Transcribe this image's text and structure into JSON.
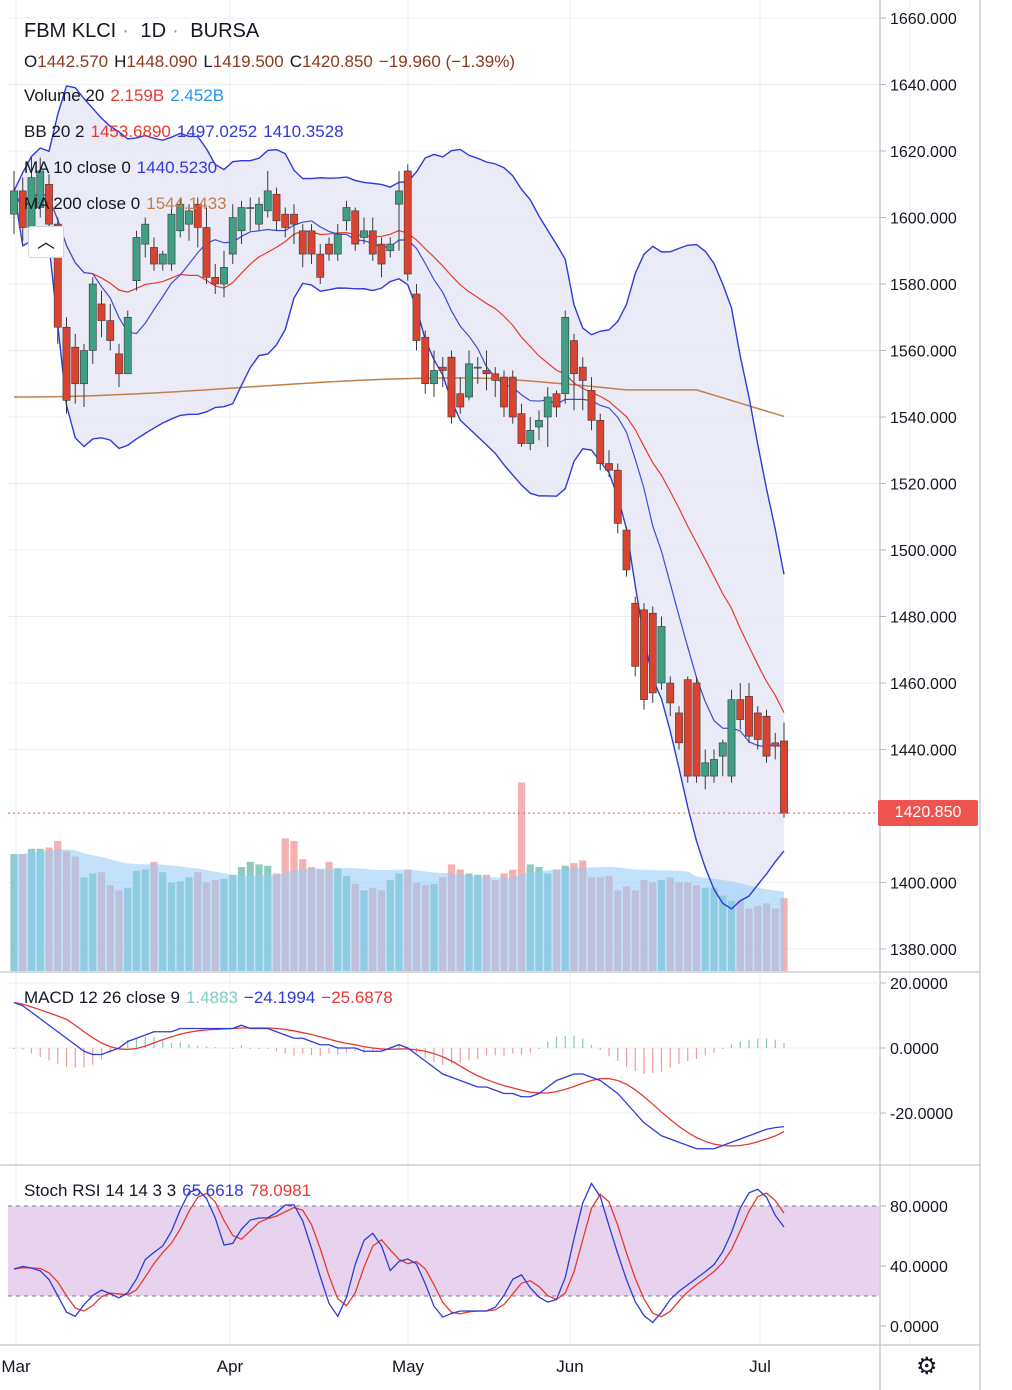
{
  "header": {
    "symbol": "FBM KLCI",
    "interval": "1D",
    "exchange": "BURSA",
    "ohlc": {
      "open_label": "O",
      "open": "1442.570",
      "high_label": "H",
      "high": "1448.090",
      "low_label": "L",
      "low": "1419.500",
      "close_label": "C",
      "close": "1420.850",
      "change": "−19.960 (−1.39%)"
    }
  },
  "legends": {
    "volume": {
      "label": "Volume 20",
      "v1": "2.159B",
      "v2": "2.452B"
    },
    "bb": {
      "label": "BB 20 2",
      "v1": "1453.6890",
      "v2": "1497.0252",
      "v3": "1410.3528"
    },
    "ma10": {
      "label": "MA 10 close 0",
      "value": "1440.5230"
    },
    "ma200": {
      "label": "MA 200 close 0",
      "value": "1544.1433"
    },
    "macd": {
      "label": "MACD 12 26 close 9",
      "hist": "1.4883",
      "macd": "−24.1994",
      "signal": "−25.6878"
    },
    "stoch": {
      "label": "Stoch RSI 14 14 3 3",
      "k": "65.6618",
      "d": "78.0981"
    }
  },
  "colors": {
    "up": "#26a69a",
    "down": "#ef5350",
    "bb_line": "#2f3ad9",
    "bb_fill": "#e6e7f5",
    "ma10": "#e53935",
    "ma200": "#c27f4a",
    "vol_ma": "#90caf9",
    "stoch_band": "#e1c8e8",
    "k": "#2f3ad9",
    "d": "#e53935",
    "grid": "#eceff2"
  },
  "last_price_badge": "1420.850",
  "settings_icon": "gear-icon",
  "chart_data": {
    "type": "candlestick",
    "x_ticks": [
      "Mar",
      "Apr",
      "May",
      "Jun",
      "Jul"
    ],
    "price_axis": {
      "ticks": [
        "1660.000",
        "1640.000",
        "1620.000",
        "1600.000",
        "1580.000",
        "1560.000",
        "1540.000",
        "1520.000",
        "1500.000",
        "1480.000",
        "1460.000",
        "1440.000",
        "1420.850",
        "1400.000",
        "1380.000"
      ],
      "range": [
        1372,
        1662
      ]
    },
    "candles": [
      {
        "o": 1601,
        "c": 1608,
        "h": 1614,
        "l": 1595
      },
      {
        "o": 1608,
        "c": 1597,
        "h": 1612,
        "l": 1593
      },
      {
        "o": 1597,
        "c": 1612,
        "h": 1618,
        "l": 1594
      },
      {
        "o": 1603,
        "c": 1614,
        "h": 1618,
        "l": 1600
      },
      {
        "o": 1610,
        "c": 1598,
        "h": 1613,
        "l": 1594
      },
      {
        "o": 1598,
        "c": 1567,
        "h": 1600,
        "l": 1562
      },
      {
        "o": 1567,
        "c": 1545,
        "h": 1570,
        "l": 1541
      },
      {
        "o": 1561,
        "c": 1550,
        "h": 1565,
        "l": 1544
      },
      {
        "o": 1550,
        "c": 1560,
        "h": 1562,
        "l": 1543
      },
      {
        "o": 1560,
        "c": 1580,
        "h": 1582,
        "l": 1556
      },
      {
        "o": 1574,
        "c": 1569,
        "h": 1578,
        "l": 1564
      },
      {
        "o": 1569,
        "c": 1563,
        "h": 1574,
        "l": 1560
      },
      {
        "o": 1559,
        "c": 1553,
        "h": 1562,
        "l": 1549
      },
      {
        "o": 1553,
        "c": 1570,
        "h": 1572,
        "l": 1554
      },
      {
        "o": 1581,
        "c": 1594,
        "h": 1596,
        "l": 1578
      },
      {
        "o": 1592,
        "c": 1598,
        "h": 1600,
        "l": 1588
      },
      {
        "o": 1591,
        "c": 1586,
        "h": 1594,
        "l": 1584
      },
      {
        "o": 1586,
        "c": 1589,
        "h": 1590,
        "l": 1584
      },
      {
        "o": 1586,
        "c": 1601,
        "h": 1603,
        "l": 1584
      },
      {
        "o": 1596,
        "c": 1604,
        "h": 1606,
        "l": 1594
      },
      {
        "o": 1598,
        "c": 1602,
        "h": 1604,
        "l": 1593
      },
      {
        "o": 1604,
        "c": 1597,
        "h": 1606,
        "l": 1591
      },
      {
        "o": 1597,
        "c": 1582,
        "h": 1603,
        "l": 1580
      },
      {
        "o": 1582,
        "c": 1580,
        "h": 1586,
        "l": 1577
      },
      {
        "o": 1580,
        "c": 1585,
        "h": 1590,
        "l": 1576
      },
      {
        "o": 1589,
        "c": 1600,
        "h": 1604,
        "l": 1586
      },
      {
        "o": 1596,
        "c": 1603,
        "h": 1605,
        "l": 1592
      },
      {
        "o": 1603,
        "c": 1603,
        "h": 1606,
        "l": 1596
      },
      {
        "o": 1598,
        "c": 1604,
        "h": 1606,
        "l": 1596
      },
      {
        "o": 1602,
        "c": 1608,
        "h": 1614,
        "l": 1600
      },
      {
        "o": 1607,
        "c": 1599,
        "h": 1609,
        "l": 1596
      },
      {
        "o": 1601,
        "c": 1597,
        "h": 1603,
        "l": 1594
      },
      {
        "o": 1601,
        "c": 1598,
        "h": 1604,
        "l": 1592
      },
      {
        "o": 1596,
        "c": 1589,
        "h": 1598,
        "l": 1585
      },
      {
        "o": 1596,
        "c": 1589,
        "h": 1598,
        "l": 1586
      },
      {
        "o": 1589,
        "c": 1582,
        "h": 1592,
        "l": 1580
      },
      {
        "o": 1592,
        "c": 1589,
        "h": 1594,
        "l": 1587
      },
      {
        "o": 1589,
        "c": 1595,
        "h": 1598,
        "l": 1587
      },
      {
        "o": 1599,
        "c": 1603,
        "h": 1605,
        "l": 1596
      },
      {
        "o": 1602,
        "c": 1592,
        "h": 1603,
        "l": 1590
      },
      {
        "o": 1594,
        "c": 1596,
        "h": 1600,
        "l": 1592
      },
      {
        "o": 1596,
        "c": 1589,
        "h": 1600,
        "l": 1587
      },
      {
        "o": 1592,
        "c": 1586,
        "h": 1594,
        "l": 1582
      },
      {
        "o": 1590,
        "c": 1592,
        "h": 1594,
        "l": 1588
      },
      {
        "o": 1604,
        "c": 1608,
        "h": 1614,
        "l": 1590
      },
      {
        "o": 1614,
        "c": 1583,
        "h": 1616,
        "l": 1581
      },
      {
        "o": 1577,
        "c": 1563,
        "h": 1580,
        "l": 1560
      },
      {
        "o": 1564,
        "c": 1550,
        "h": 1566,
        "l": 1547
      },
      {
        "o": 1550,
        "c": 1554,
        "h": 1560,
        "l": 1546
      },
      {
        "o": 1555,
        "c": 1554,
        "h": 1558,
        "l": 1549
      },
      {
        "o": 1558,
        "c": 1540,
        "h": 1560,
        "l": 1538
      },
      {
        "o": 1547,
        "c": 1543,
        "h": 1552,
        "l": 1541
      },
      {
        "o": 1546,
        "c": 1556,
        "h": 1560,
        "l": 1545
      },
      {
        "o": 1555,
        "c": 1555,
        "h": 1558,
        "l": 1550
      },
      {
        "o": 1554,
        "c": 1553,
        "h": 1560,
        "l": 1548
      },
      {
        "o": 1553,
        "c": 1551,
        "h": 1555,
        "l": 1546
      },
      {
        "o": 1552,
        "c": 1543,
        "h": 1554,
        "l": 1540
      },
      {
        "o": 1552,
        "c": 1540,
        "h": 1554,
        "l": 1538
      },
      {
        "o": 1541,
        "c": 1532,
        "h": 1544,
        "l": 1531
      },
      {
        "o": 1532,
        "c": 1536,
        "h": 1540,
        "l": 1530
      },
      {
        "o": 1537,
        "c": 1539,
        "h": 1542,
        "l": 1533
      },
      {
        "o": 1540,
        "c": 1546,
        "h": 1549,
        "l": 1531
      },
      {
        "o": 1547,
        "c": 1543,
        "h": 1548,
        "l": 1540
      },
      {
        "o": 1547,
        "c": 1570,
        "h": 1572,
        "l": 1544
      },
      {
        "o": 1563,
        "c": 1553,
        "h": 1565,
        "l": 1542
      },
      {
        "o": 1555,
        "c": 1551,
        "h": 1558,
        "l": 1542
      },
      {
        "o": 1548,
        "c": 1539,
        "h": 1552,
        "l": 1536
      },
      {
        "o": 1539,
        "c": 1526,
        "h": 1541,
        "l": 1524
      },
      {
        "o": 1526,
        "c": 1524,
        "h": 1530,
        "l": 1522
      },
      {
        "o": 1524,
        "c": 1508,
        "h": 1526,
        "l": 1505
      },
      {
        "o": 1506,
        "c": 1494,
        "h": 1507,
        "l": 1492
      },
      {
        "o": 1484,
        "c": 1465,
        "h": 1486,
        "l": 1462
      },
      {
        "o": 1482,
        "c": 1455,
        "h": 1484,
        "l": 1452
      },
      {
        "o": 1481,
        "c": 1457,
        "h": 1483,
        "l": 1454
      },
      {
        "o": 1460,
        "c": 1477,
        "h": 1480,
        "l": 1458
      },
      {
        "o": 1460,
        "c": 1454,
        "h": 1462,
        "l": 1450
      },
      {
        "o": 1451,
        "c": 1442,
        "h": 1453,
        "l": 1440
      },
      {
        "o": 1461,
        "c": 1432,
        "h": 1462,
        "l": 1430
      },
      {
        "o": 1460,
        "c": 1432,
        "h": 1462,
        "l": 1430
      },
      {
        "o": 1432,
        "c": 1436,
        "h": 1440,
        "l": 1428
      },
      {
        "o": 1432,
        "c": 1437,
        "h": 1440,
        "l": 1430
      },
      {
        "o": 1438,
        "c": 1442,
        "h": 1443,
        "l": 1432
      },
      {
        "o": 1432,
        "c": 1455,
        "h": 1458,
        "l": 1430
      },
      {
        "o": 1455,
        "c": 1449,
        "h": 1460,
        "l": 1446
      },
      {
        "o": 1456,
        "c": 1444,
        "h": 1460,
        "l": 1442
      },
      {
        "o": 1451,
        "c": 1443,
        "h": 1453,
        "l": 1440
      },
      {
        "o": 1450,
        "c": 1438,
        "h": 1452,
        "l": 1436
      },
      {
        "o": 1442,
        "c": 1441,
        "h": 1445,
        "l": 1437
      },
      {
        "o": 1442.57,
        "c": 1420.85,
        "h": 1448.09,
        "l": 1419.5
      }
    ],
    "volume_relative": [
      0.9,
      0.9,
      0.94,
      0.94,
      0.95,
      1.0,
      0.92,
      0.88,
      0.72,
      0.75,
      0.76,
      0.66,
      0.62,
      0.64,
      0.77,
      0.78,
      0.84,
      0.76,
      0.68,
      0.69,
      0.72,
      0.76,
      0.68,
      0.7,
      0.71,
      0.74,
      0.8,
      0.84,
      0.82,
      0.81,
      0.75,
      1.02,
      1.0,
      0.86,
      0.8,
      0.78,
      0.84,
      0.79,
      0.73,
      0.67,
      0.62,
      0.64,
      0.62,
      0.7,
      0.75,
      0.78,
      0.68,
      0.66,
      0.67,
      0.72,
      0.82,
      0.78,
      0.75,
      0.74,
      0.74,
      0.7,
      0.75,
      0.78,
      1.45,
      0.82,
      0.8,
      0.75,
      0.78,
      0.81,
      0.83,
      0.85,
      0.72,
      0.72,
      0.73,
      0.62,
      0.65,
      0.62,
      0.7,
      0.68,
      0.7,
      0.72,
      0.68,
      0.68,
      0.66,
      0.64,
      0.64,
      0.58,
      0.54,
      0.54,
      0.48,
      0.5,
      0.52,
      0.48,
      0.56
    ]
  }
}
